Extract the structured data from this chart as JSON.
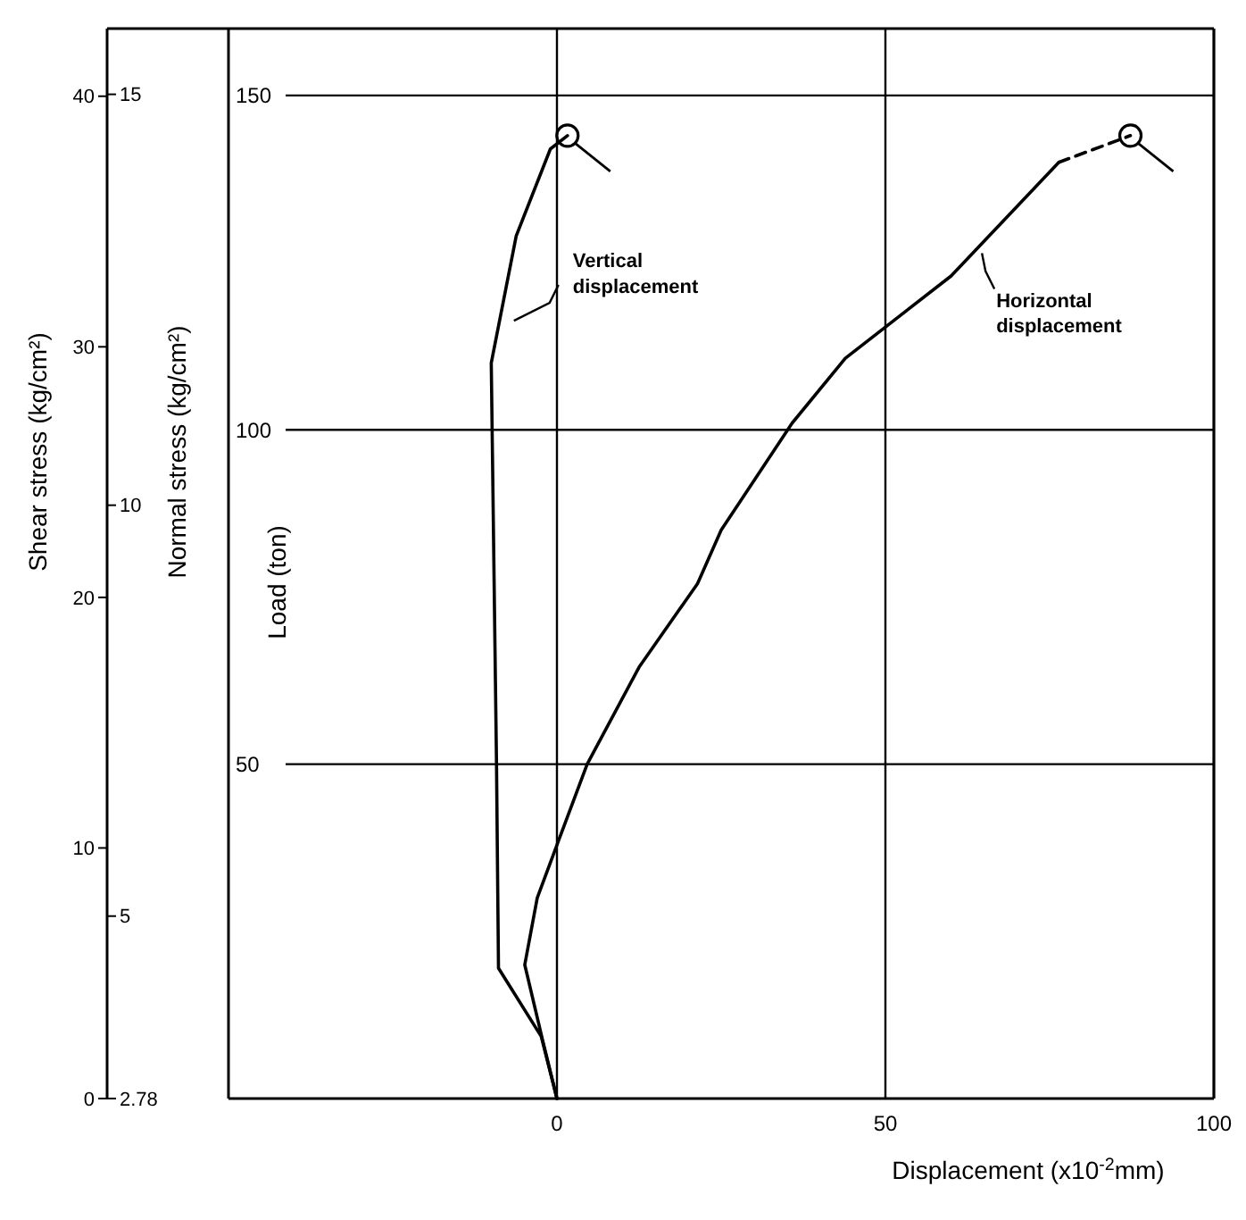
{
  "chart_data": {
    "type": "line",
    "xlabel": "Displacement (x10$^{-2}$mm)",
    "ylabel": "Load (ton)",
    "y2label": "Normal stress (kg/cm²)",
    "y3label": "Shear stress (kg/cm²)",
    "xlim": [
      -50,
      100
    ],
    "xticks": [
      0,
      50,
      100
    ],
    "ylim": [
      0,
      160
    ],
    "yticks": [
      50,
      100,
      150
    ],
    "y2lim": [
      2.78,
      15.8
    ],
    "y2ticks": [
      2.78,
      5,
      10,
      15
    ],
    "y3lim": [
      0,
      42.7
    ],
    "y3ticks": [
      0,
      10,
      20,
      30,
      40
    ],
    "grid": true,
    "line_style": "solid",
    "marker": "none",
    "series": [
      {
        "x": [
          0,
          -2.4,
          -8.9,
          -9.2,
          -10,
          -6.2,
          -1,
          1.6
        ],
        "values": [
          0,
          9.3,
          19.5,
          50,
          110,
          129,
          142,
          144
        ],
        "color": "#000000"
      },
      {
        "x": [
          0,
          -2.2,
          -4.9,
          -3,
          0.3,
          4.6,
          12.5,
          21.4,
          25,
          35.8,
          43.9,
          60,
          76.4
        ],
        "values": [
          0,
          8.8,
          20,
          30,
          38.7,
          50,
          64.5,
          77,
          85,
          101,
          110.7,
          123,
          140
        ],
        "color": "#000000"
      },
      {
        "x": [
          76.4,
          87.3
        ],
        "values": [
          140,
          144
        ],
        "color": "#000000",
        "line_style": "dashed"
      },
      {
        "type": "scatter",
        "x": [
          1.6,
          87.3
        ],
        "values": [
          144,
          144
        ],
        "color": "#000000",
        "marker": "circle"
      }
    ],
    "annotations": [
      "Vertical displacement",
      "Horizontal displacement"
    ]
  }
}
